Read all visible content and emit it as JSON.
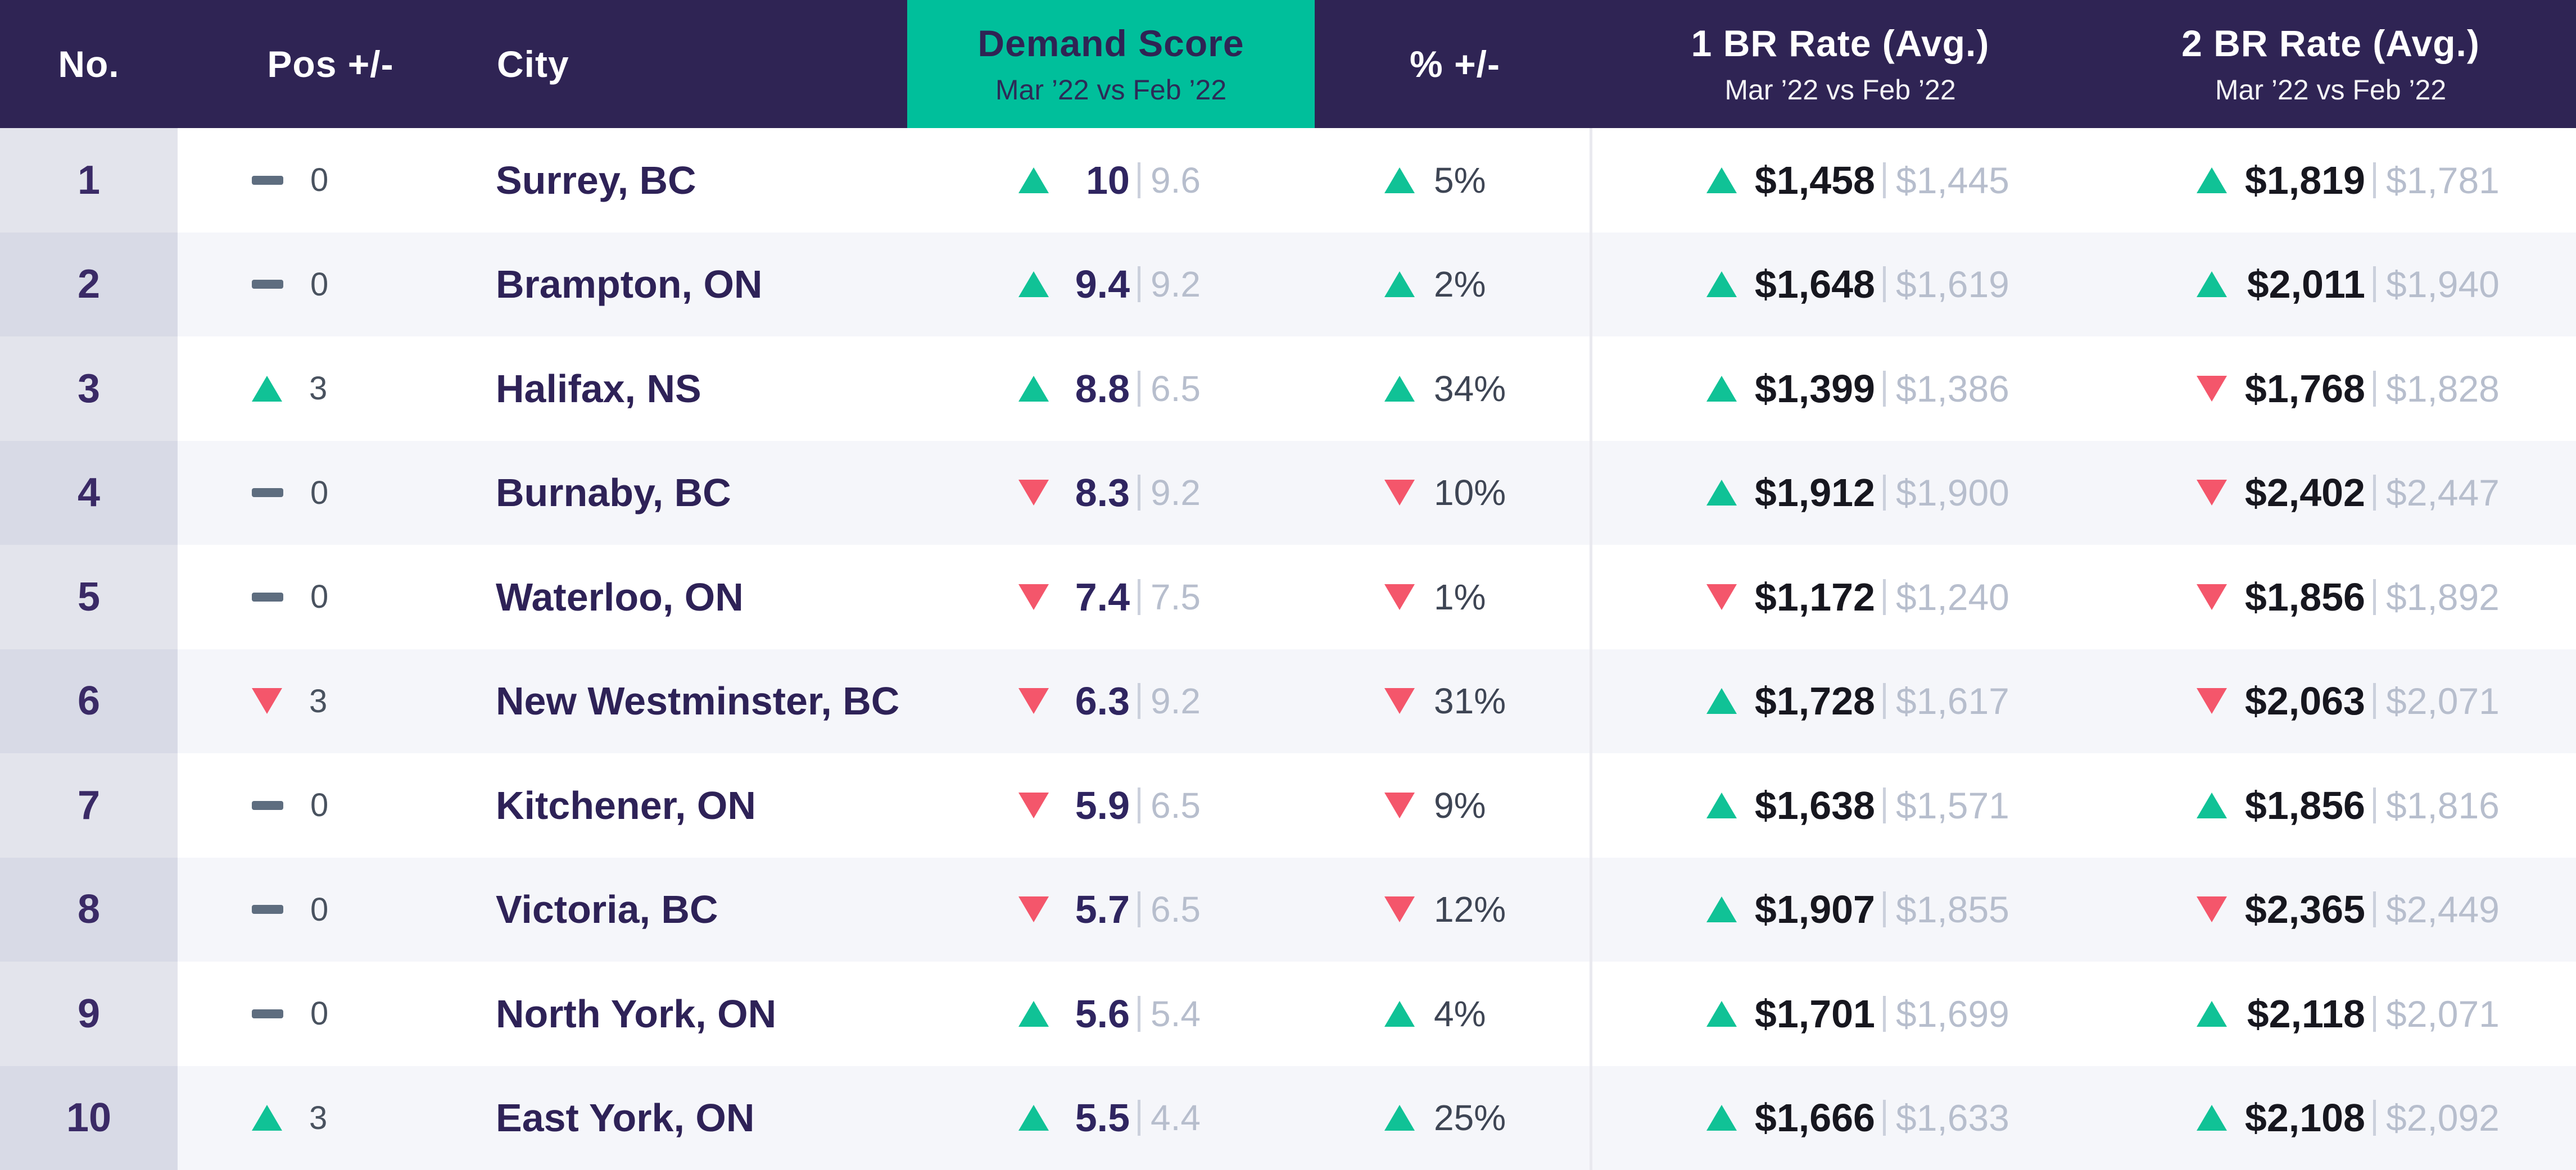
{
  "chart_data": {
    "type": "table",
    "columns": [
      {
        "label": "No."
      },
      {
        "label": "Pos +/-"
      },
      {
        "label": "City"
      },
      {
        "label": "Demand Score",
        "sublabel": "Mar ’22 vs Feb ’22",
        "highlighted": true
      },
      {
        "label": "% +/-"
      },
      {
        "label": "1 BR Rate (Avg.)",
        "sublabel": "Mar ’22 vs Feb ’22"
      },
      {
        "label": "2 BR Rate (Avg.)",
        "sublabel": "Mar ’22 vs Feb ’22"
      }
    ],
    "rows": [
      {
        "no": "1",
        "pos": {
          "dir": "none",
          "value": "0"
        },
        "city": "Surrey, BC",
        "demand": {
          "dir": "up",
          "current": "10",
          "previous": "9.6"
        },
        "pct": {
          "dir": "up",
          "value": "5%"
        },
        "br1": {
          "dir": "up",
          "current": "$1,458",
          "previous": "$1,445"
        },
        "br2": {
          "dir": "up",
          "current": "$1,819",
          "previous": "$1,781"
        }
      },
      {
        "no": "2",
        "pos": {
          "dir": "none",
          "value": "0"
        },
        "city": "Brampton, ON",
        "demand": {
          "dir": "up",
          "current": "9.4",
          "previous": "9.2"
        },
        "pct": {
          "dir": "up",
          "value": "2%"
        },
        "br1": {
          "dir": "up",
          "current": "$1,648",
          "previous": "$1,619"
        },
        "br2": {
          "dir": "up",
          "current": "$2,011",
          "previous": "$1,940"
        }
      },
      {
        "no": "3",
        "pos": {
          "dir": "up",
          "value": "3"
        },
        "city": "Halifax, NS",
        "demand": {
          "dir": "up",
          "current": "8.8",
          "previous": "6.5"
        },
        "pct": {
          "dir": "up",
          "value": "34%"
        },
        "br1": {
          "dir": "up",
          "current": "$1,399",
          "previous": "$1,386"
        },
        "br2": {
          "dir": "down",
          "current": "$1,768",
          "previous": "$1,828"
        }
      },
      {
        "no": "4",
        "pos": {
          "dir": "none",
          "value": "0"
        },
        "city": "Burnaby, BC",
        "demand": {
          "dir": "down",
          "current": "8.3",
          "previous": "9.2"
        },
        "pct": {
          "dir": "down",
          "value": "10%"
        },
        "br1": {
          "dir": "up",
          "current": "$1,912",
          "previous": "$1,900"
        },
        "br2": {
          "dir": "down",
          "current": "$2,402",
          "previous": "$2,447"
        }
      },
      {
        "no": "5",
        "pos": {
          "dir": "none",
          "value": "0"
        },
        "city": "Waterloo, ON",
        "demand": {
          "dir": "down",
          "current": "7.4",
          "previous": "7.5"
        },
        "pct": {
          "dir": "down",
          "value": "1%"
        },
        "br1": {
          "dir": "down",
          "current": "$1,172",
          "previous": "$1,240"
        },
        "br2": {
          "dir": "down",
          "current": "$1,856",
          "previous": "$1,892"
        }
      },
      {
        "no": "6",
        "pos": {
          "dir": "down",
          "value": "3"
        },
        "city": "New Westminster, BC",
        "demand": {
          "dir": "down",
          "current": "6.3",
          "previous": "9.2"
        },
        "pct": {
          "dir": "down",
          "value": "31%"
        },
        "br1": {
          "dir": "up",
          "current": "$1,728",
          "previous": "$1,617"
        },
        "br2": {
          "dir": "down",
          "current": "$2,063",
          "previous": "$2,071"
        }
      },
      {
        "no": "7",
        "pos": {
          "dir": "none",
          "value": "0"
        },
        "city": "Kitchener, ON",
        "demand": {
          "dir": "down",
          "current": "5.9",
          "previous": "6.5"
        },
        "pct": {
          "dir": "down",
          "value": "9%"
        },
        "br1": {
          "dir": "up",
          "current": "$1,638",
          "previous": "$1,571"
        },
        "br2": {
          "dir": "up",
          "current": "$1,856",
          "previous": "$1,816"
        }
      },
      {
        "no": "8",
        "pos": {
          "dir": "none",
          "value": "0"
        },
        "city": "Victoria, BC",
        "demand": {
          "dir": "down",
          "current": "5.7",
          "previous": "6.5"
        },
        "pct": {
          "dir": "down",
          "value": "12%"
        },
        "br1": {
          "dir": "up",
          "current": "$1,907",
          "previous": "$1,855"
        },
        "br2": {
          "dir": "down",
          "current": "$2,365",
          "previous": "$2,449"
        }
      },
      {
        "no": "9",
        "pos": {
          "dir": "none",
          "value": "0"
        },
        "city": "North York, ON",
        "demand": {
          "dir": "up",
          "current": "5.6",
          "previous": "5.4"
        },
        "pct": {
          "dir": "up",
          "value": "4%"
        },
        "br1": {
          "dir": "up",
          "current": "$1,701",
          "previous": "$1,699"
        },
        "br2": {
          "dir": "up",
          "current": "$2,118",
          "previous": "$2,071"
        }
      },
      {
        "no": "10",
        "pos": {
          "dir": "up",
          "value": "3"
        },
        "city": "East York, ON",
        "demand": {
          "dir": "up",
          "current": "5.5",
          "previous": "4.4"
        },
        "pct": {
          "dir": "up",
          "value": "25%"
        },
        "br1": {
          "dir": "up",
          "current": "$1,666",
          "previous": "$1,633"
        },
        "br2": {
          "dir": "up",
          "current": "$2,108",
          "previous": "$2,092"
        }
      }
    ]
  },
  "colors": {
    "header_bg": "#2F2454",
    "demand_header_bg": "#00BF9B",
    "up": "#10C296",
    "down": "#F4566B",
    "no_change_dash": "#5E6D7F",
    "row_alt_bg": "#F5F6FA",
    "muted_value": "#B7BECD"
  }
}
